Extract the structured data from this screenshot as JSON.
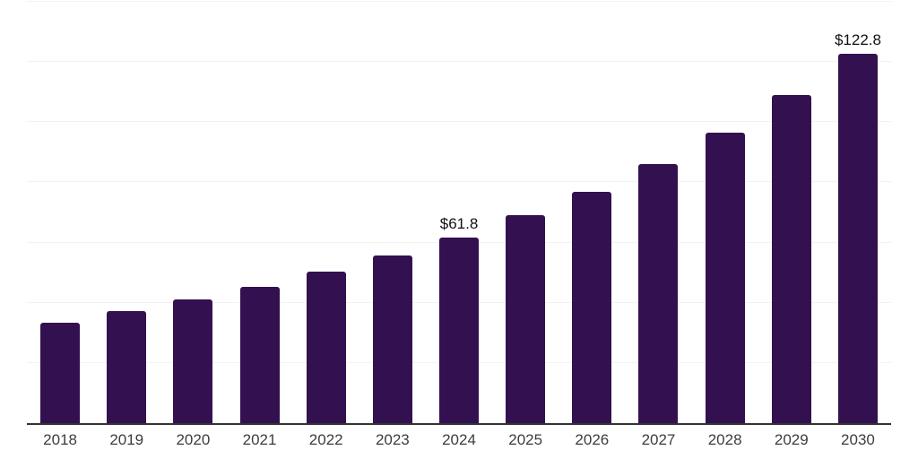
{
  "chart_data": {
    "type": "bar",
    "title": "",
    "xlabel": "",
    "ylabel": "",
    "categories": [
      "2018",
      "2019",
      "2020",
      "2021",
      "2022",
      "2023",
      "2024",
      "2025",
      "2026",
      "2027",
      "2028",
      "2029",
      "2030"
    ],
    "values": [
      33.5,
      37.2,
      41.0,
      45.2,
      50.2,
      55.6,
      61.8,
      69.2,
      77.0,
      86.0,
      96.5,
      109.0,
      122.8
    ],
    "annotations": [
      {
        "category": "2024",
        "label": "$61.8"
      },
      {
        "category": "2030",
        "label": "$122.8"
      }
    ],
    "ylim": [
      0,
      140
    ],
    "grid_step": 20,
    "grid": true,
    "legend": false,
    "y_axis_labels_visible": false,
    "colors": {
      "bar": "#331150",
      "grid_line": "#f2f2f2",
      "axis_line": "#333333",
      "tick_label": "#3d3d3d",
      "annotation_text": "#111111",
      "background": "#ffffff"
    }
  }
}
